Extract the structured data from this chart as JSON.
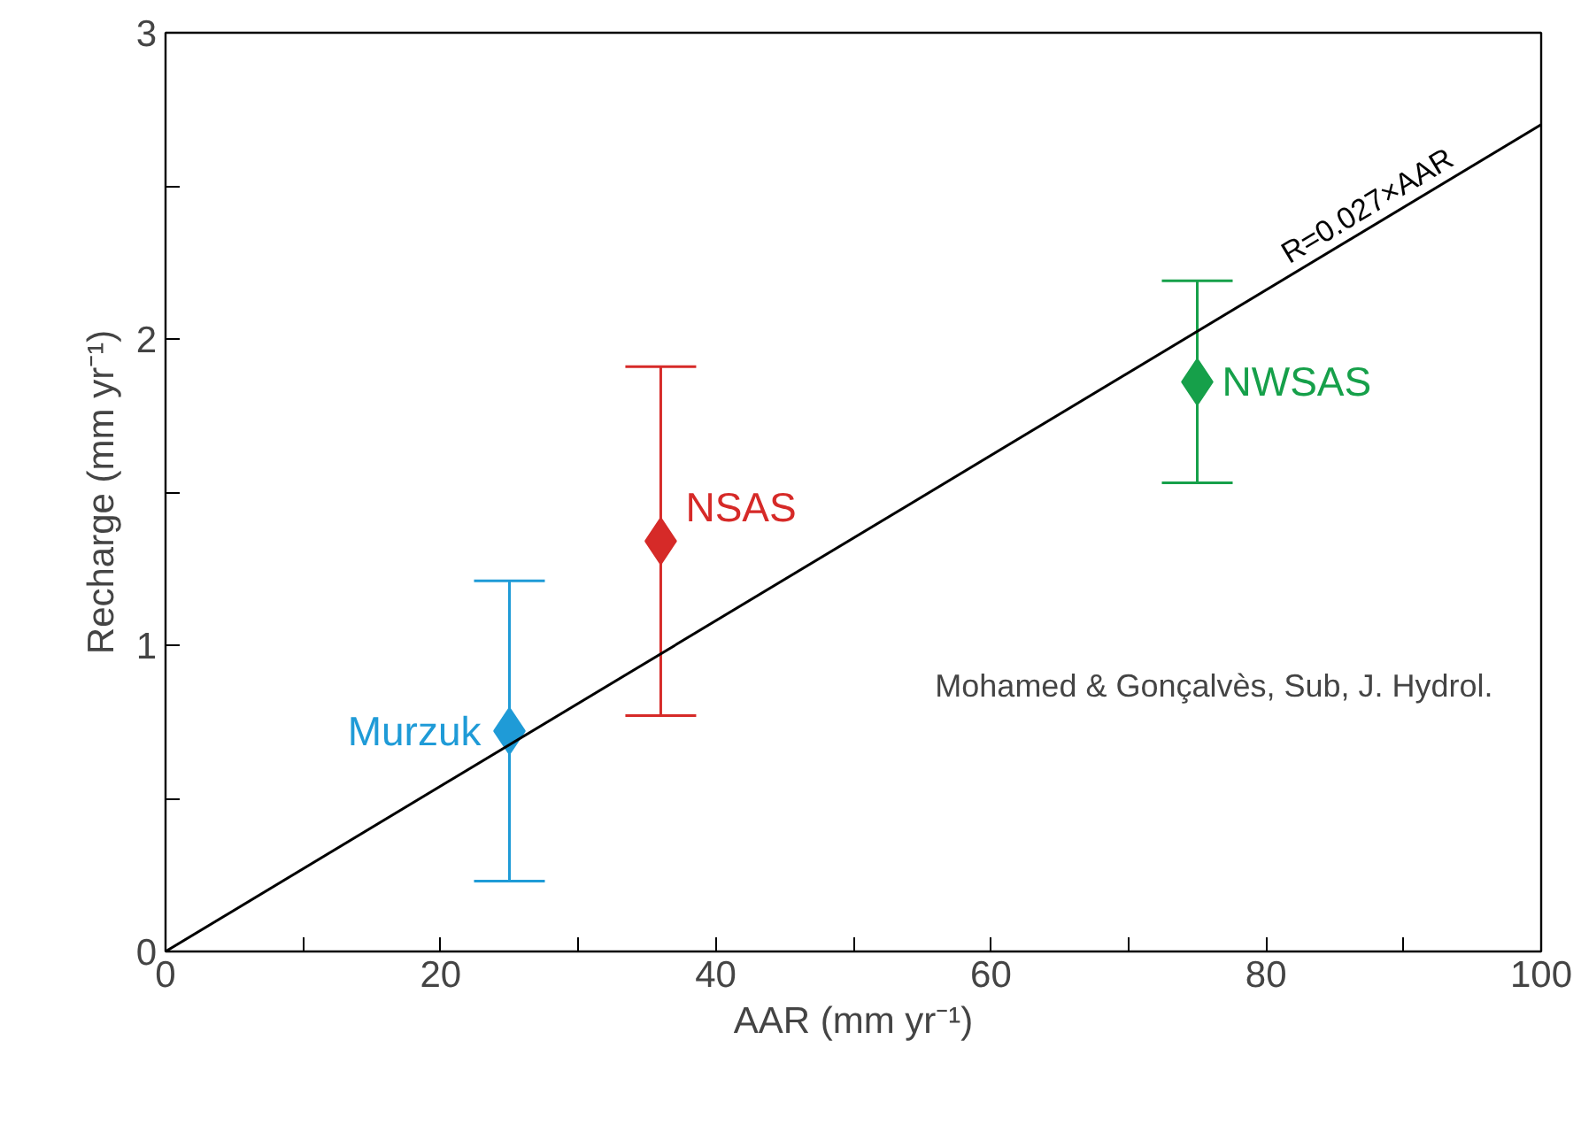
{
  "chart_data": {
    "type": "scatter",
    "xlabel": "AAR (mm yr⁻¹)",
    "ylabel": "Recharge (mm yr⁻¹)",
    "xlim": [
      0,
      100
    ],
    "ylim": [
      0,
      3
    ],
    "xticks": [
      0,
      {
        "value": 10,
        "label": null
      },
      20,
      {
        "value": 30,
        "label": null
      },
      40,
      {
        "value": 50,
        "label": null
      },
      60,
      {
        "value": 70,
        "label": null
      },
      80,
      {
        "value": 90,
        "label": null
      },
      100
    ],
    "yticks": [
      0,
      {
        "value": 0.5,
        "label": null
      },
      1,
      {
        "value": 1.5,
        "label": null
      },
      2,
      {
        "value": 2.5,
        "label": null
      },
      3
    ],
    "marker": "diamond",
    "grid": false,
    "series": [
      {
        "name": "Murzuk",
        "color": "#1f9bd7",
        "x": [
          25
        ],
        "values": [
          0.72
        ],
        "errors": [
          [
            0.23,
            1.21
          ]
        ]
      },
      {
        "name": "NSAS",
        "color": "#d62a28",
        "x": [
          36
        ],
        "values": [
          1.34
        ],
        "errors": [
          [
            0.77,
            1.91
          ]
        ]
      },
      {
        "name": "NWSAS",
        "color": "#16a04a",
        "x": [
          75
        ],
        "values": [
          1.86
        ],
        "errors": [
          [
            1.53,
            2.19
          ]
        ]
      },
      {
        "type": "line",
        "marker": "none",
        "name": "R=0.027×AAR",
        "color": "#000000",
        "x": [
          0,
          100
        ],
        "values": [
          0,
          2.7
        ]
      }
    ],
    "annotations": [
      "Mohamed & Gonçalvès, Sub, J. Hydrol."
    ]
  }
}
